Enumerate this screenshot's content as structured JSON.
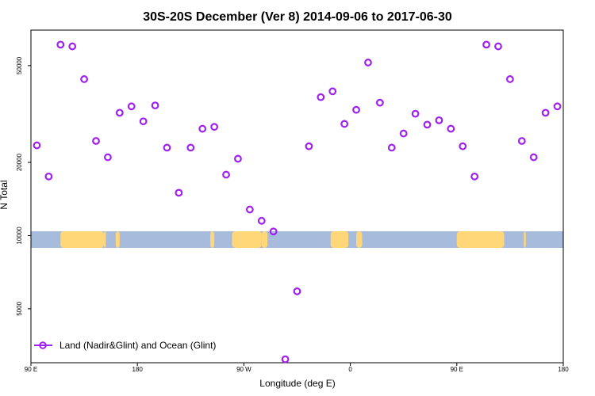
{
  "chart_data": {
    "type": "scatter",
    "title": "30S-20S December (Ver 8)   2014-09-06 to 2017-06-30",
    "xlabel": "Longitude (deg E)",
    "ylabel": "N Total",
    "y_scale": "log",
    "xlim": [
      -90,
      180
    ],
    "ylim": [
      3000,
      70000
    ],
    "x_ticks": [
      {
        "value": -90,
        "label": "90 E"
      },
      {
        "value": -36,
        "label": "180"
      },
      {
        "value": 18,
        "label": "90 W"
      },
      {
        "value": 72,
        "label": "0"
      },
      {
        "value": 126,
        "label": "90 E"
      },
      {
        "value": 180,
        "label": "180"
      }
    ],
    "y_ticks": [
      {
        "value": 5000,
        "label": "5000"
      },
      {
        "value": 10000,
        "label": "10000"
      },
      {
        "value": 20000,
        "label": "20000"
      },
      {
        "value": 50000,
        "label": "50000"
      }
    ],
    "colors": {
      "series": "#a020f0",
      "ocean": "#a7bcdd",
      "land": "#ffd778"
    },
    "series": [
      {
        "name": "Land (Nadir&Glint) and Ocean (Glint)",
        "x": [
          -87.0,
          -81.0,
          -75.0,
          -69.0,
          -63.0,
          -57.0,
          -51.0,
          -45.0,
          -39.0,
          -33.0,
          -27.0,
          -21.0,
          -15.0,
          -9.0,
          -3.0,
          3.0,
          9.0,
          15.0,
          21.0,
          27.0,
          33.0,
          39.0,
          45.0,
          51.0,
          57.0,
          63.0,
          69.0,
          75.0,
          81.0,
          87.0,
          93.0,
          99.0,
          105.0,
          111.0,
          117.0,
          123.0,
          129.0,
          135.0,
          141.0,
          147.0,
          153.0,
          159.0,
          165.0,
          171.0,
          177.0
        ],
        "y": [
          23500,
          17500,
          61000,
          60000,
          44000,
          24500,
          21000,
          32000,
          34000,
          29500,
          34300,
          23000,
          15000,
          23000,
          27500,
          28000,
          17800,
          20700,
          12800,
          11500,
          10400,
          3100,
          5900,
          23300,
          37100,
          39200,
          28800,
          32900,
          51500,
          35200,
          23000,
          26300,
          31700,
          28600,
          29800,
          27500,
          23300,
          17500,
          61000,
          60000,
          44000,
          24500,
          21000,
          32000,
          34000
        ]
      }
    ],
    "legend": {
      "position": "bottom-left",
      "label": "Land (Nadir&Glint) and Ocean (Glint)"
    },
    "background_map": {
      "description": "land/ocean strip",
      "land_segments": [
        [
          -75,
          -53
        ],
        [
          -53,
          -52
        ],
        [
          -47,
          -45
        ],
        [
          1,
          3
        ],
        [
          12,
          27
        ],
        [
          27,
          30
        ],
        [
          62,
          71
        ],
        [
          63,
          70
        ],
        [
          75,
          78
        ],
        [
          126,
          150
        ],
        [
          160,
          161
        ]
      ]
    }
  }
}
